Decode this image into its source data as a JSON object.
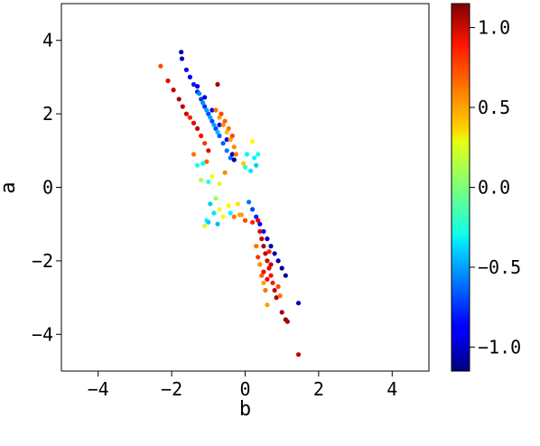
{
  "chart_data": {
    "type": "scatter",
    "title": "",
    "xlabel": "b",
    "ylabel": "a",
    "xlim": [
      -5,
      5
    ],
    "ylim": [
      -5,
      5
    ],
    "x_ticks": [
      -4,
      -2,
      0,
      2,
      4
    ],
    "x_tick_labels": [
      "−4",
      "−2",
      "0",
      "2",
      "4"
    ],
    "y_ticks": [
      -4,
      -2,
      0,
      2,
      4
    ],
    "y_tick_labels": [
      "−4",
      "−2",
      "0",
      "2",
      "4"
    ],
    "grid": false,
    "colorbar": {
      "colormap": "jet",
      "range": [
        -1.15,
        1.15
      ],
      "ticks": [
        -1.0,
        -0.5,
        0.0,
        0.5,
        1.0
      ],
      "tick_labels": [
        "−1.0",
        "−0.5",
        "0.0",
        "0.5",
        "1.0"
      ]
    },
    "points": [
      [
        -1.74,
        3.68,
        -1.1
      ],
      [
        -1.72,
        3.5,
        -1.0
      ],
      [
        -1.6,
        3.2,
        -0.9
      ],
      [
        -1.5,
        3.0,
        -0.85
      ],
      [
        -1.4,
        2.8,
        -0.8
      ],
      [
        -1.3,
        2.6,
        -0.8
      ],
      [
        -1.2,
        2.4,
        -0.75
      ],
      [
        -1.1,
        2.2,
        -0.75
      ],
      [
        -1.0,
        2.0,
        -0.7
      ],
      [
        -0.9,
        1.8,
        -0.7
      ],
      [
        -0.8,
        1.6,
        -0.7
      ],
      [
        -0.7,
        1.4,
        -0.65
      ],
      [
        -0.6,
        1.2,
        -0.65
      ],
      [
        -0.5,
        1.0,
        -0.6
      ],
      [
        -0.4,
        0.8,
        -0.6
      ],
      [
        -1.25,
        2.55,
        -0.55
      ],
      [
        -1.15,
        2.3,
        -0.55
      ],
      [
        -1.05,
        2.1,
        -0.5
      ],
      [
        -0.95,
        1.9,
        -0.5
      ],
      [
        -0.85,
        1.7,
        -0.5
      ],
      [
        -0.75,
        1.5,
        -0.45
      ],
      [
        -1.3,
        2.75,
        -0.95
      ],
      [
        -1.1,
        2.45,
        -0.95
      ],
      [
        -0.9,
        2.1,
        -0.9
      ],
      [
        -0.7,
        1.7,
        -0.9
      ],
      [
        -0.5,
        1.3,
        -0.9
      ],
      [
        -0.35,
        0.9,
        -1.0
      ],
      [
        -0.3,
        0.75,
        -1.05
      ],
      [
        -2.3,
        3.3,
        0.7
      ],
      [
        -2.1,
        2.9,
        0.9
      ],
      [
        -1.95,
        2.65,
        1.0
      ],
      [
        -1.8,
        2.4,
        1.05
      ],
      [
        -1.7,
        2.2,
        1.0
      ],
      [
        -1.6,
        2.0,
        0.95
      ],
      [
        -1.5,
        1.9,
        0.8
      ],
      [
        -1.4,
        1.75,
        0.9
      ],
      [
        -1.3,
        1.6,
        1.0
      ],
      [
        -1.2,
        1.4,
        0.85
      ],
      [
        -1.1,
        1.2,
        0.75
      ],
      [
        -1.0,
        1.0,
        0.9
      ],
      [
        -0.8,
        2.1,
        0.6
      ],
      [
        -0.7,
        1.9,
        0.5
      ],
      [
        -0.6,
        1.7,
        0.55
      ],
      [
        -0.5,
        1.5,
        0.45
      ],
      [
        -0.4,
        1.3,
        0.5
      ],
      [
        -0.3,
        1.1,
        0.55
      ],
      [
        -0.25,
        0.9,
        0.6
      ],
      [
        -0.65,
        2.0,
        0.7
      ],
      [
        -0.55,
        1.8,
        0.65
      ],
      [
        -0.45,
        1.6,
        0.6
      ],
      [
        -0.35,
        1.4,
        0.7
      ],
      [
        -0.75,
        2.8,
        1.05
      ],
      [
        -1.4,
        0.9,
        0.6
      ],
      [
        -1.05,
        0.7,
        0.65
      ],
      [
        -0.55,
        0.4,
        0.55
      ],
      [
        -0.9,
        0.3,
        0.25
      ],
      [
        -0.7,
        0.1,
        0.2
      ],
      [
        -0.8,
        -0.3,
        0.05
      ],
      [
        -0.95,
        -0.45,
        -0.4
      ],
      [
        -0.85,
        -0.7,
        -0.35
      ],
      [
        -0.7,
        -0.6,
        0.3
      ],
      [
        -0.6,
        -0.8,
        0.25
      ],
      [
        -0.45,
        -0.5,
        0.3
      ],
      [
        -1.05,
        -0.9,
        -0.3
      ],
      [
        -1.1,
        -1.05,
        0.2
      ],
      [
        -1.0,
        -0.95,
        -0.4
      ],
      [
        -0.75,
        -1.0,
        -0.45
      ],
      [
        -0.4,
        -0.7,
        -0.3
      ],
      [
        -0.2,
        -0.45,
        0.35
      ],
      [
        -0.15,
        -0.75,
        0.5
      ],
      [
        0.05,
        0.9,
        -0.3
      ],
      [
        0.25,
        0.8,
        -0.3
      ],
      [
        0.35,
        0.9,
        -0.25
      ],
      [
        0.0,
        0.55,
        -0.2
      ],
      [
        0.15,
        0.45,
        -0.35
      ],
      [
        0.2,
        1.25,
        0.3
      ],
      [
        -0.05,
        0.65,
        0.4
      ],
      [
        0.3,
        0.6,
        -0.4
      ],
      [
        -1.15,
        0.65,
        -0.3
      ],
      [
        -1.3,
        0.6,
        -0.25
      ],
      [
        -1.2,
        0.2,
        0.1
      ],
      [
        -1.0,
        0.15,
        -0.2
      ],
      [
        0.1,
        -0.4,
        -0.6
      ],
      [
        0.2,
        -0.6,
        -0.7
      ],
      [
        0.3,
        -0.8,
        -0.8
      ],
      [
        0.4,
        -1.0,
        -0.85
      ],
      [
        0.5,
        -1.2,
        -0.9
      ],
      [
        0.6,
        -1.4,
        -1.0
      ],
      [
        0.7,
        -1.6,
        -1.05
      ],
      [
        0.8,
        -1.8,
        -1.05
      ],
      [
        0.9,
        -2.0,
        -1.1
      ],
      [
        1.0,
        -2.2,
        -1.1
      ],
      [
        1.1,
        -2.4,
        -1.1
      ],
      [
        1.45,
        -3.15,
        -1.0
      ],
      [
        0.35,
        -0.9,
        0.9
      ],
      [
        0.4,
        -1.2,
        0.95
      ],
      [
        0.45,
        -1.4,
        1.0
      ],
      [
        0.5,
        -1.6,
        1.05
      ],
      [
        0.55,
        -1.8,
        1.0
      ],
      [
        0.6,
        -2.0,
        0.95
      ],
      [
        0.65,
        -2.2,
        0.9
      ],
      [
        0.7,
        -2.4,
        0.85
      ],
      [
        0.75,
        -2.6,
        0.8
      ],
      [
        0.8,
        -2.8,
        1.0
      ],
      [
        0.85,
        -3.0,
        1.05
      ],
      [
        0.9,
        -2.7,
        0.7
      ],
      [
        0.3,
        -1.6,
        0.6
      ],
      [
        0.35,
        -1.9,
        0.75
      ],
      [
        0.4,
        -2.1,
        0.55
      ],
      [
        0.45,
        -2.4,
        0.65
      ],
      [
        0.5,
        -2.6,
        0.5
      ],
      [
        0.55,
        -2.8,
        0.6
      ],
      [
        0.6,
        -3.2,
        0.5
      ],
      [
        0.95,
        -2.95,
        0.6
      ],
      [
        0.5,
        -2.3,
        0.85
      ],
      [
        0.6,
        -2.5,
        0.9
      ],
      [
        0.7,
        -2.1,
        1.0
      ],
      [
        0.65,
        -1.75,
        0.8
      ],
      [
        1.0,
        -3.4,
        1.05
      ],
      [
        1.1,
        -3.6,
        1.1
      ],
      [
        1.15,
        -3.65,
        1.05
      ],
      [
        1.45,
        -4.55,
        1.0
      ],
      [
        -0.1,
        -0.75,
        0.5
      ],
      [
        0.0,
        -0.9,
        0.7
      ],
      [
        -0.3,
        -0.8,
        0.6
      ],
      [
        0.2,
        -0.95,
        0.8
      ]
    ]
  }
}
